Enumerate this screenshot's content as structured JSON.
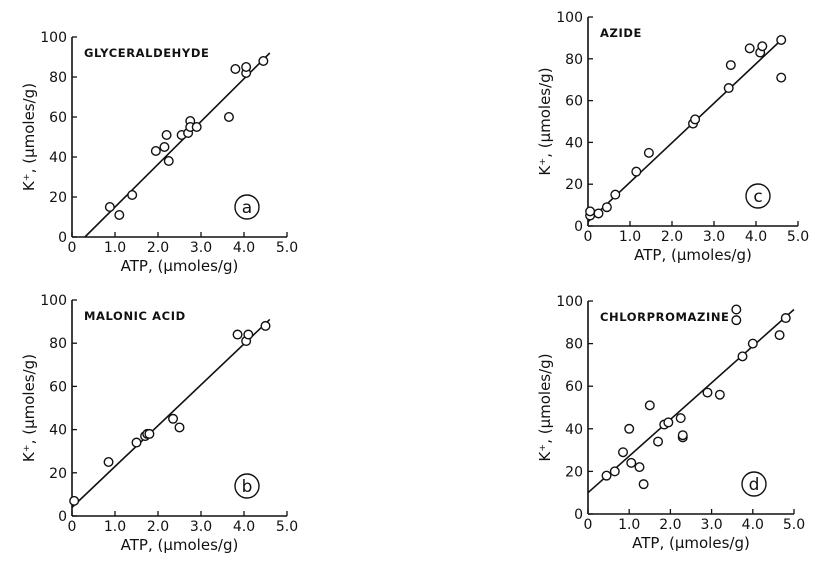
{
  "chart_data": [
    {
      "type": "scatter",
      "title": "GLYCERALDEHYDE",
      "panel": "a",
      "xlabel": "ATP, (µmoles/g)",
      "ylabel": "K⁺, (µmoles/g)",
      "xlim": [
        0,
        5.0
      ],
      "ylim": [
        0,
        100
      ],
      "xticks": [
        "0",
        "1.0",
        "2.0",
        "3.0",
        "4.0",
        "5.0"
      ],
      "yticks": [
        "0",
        "20",
        "40",
        "60",
        "80",
        "100"
      ],
      "points": [
        [
          0.88,
          15
        ],
        [
          1.1,
          11
        ],
        [
          1.4,
          21
        ],
        [
          1.95,
          43
        ],
        [
          2.15,
          45
        ],
        [
          2.2,
          51
        ],
        [
          2.25,
          38
        ],
        [
          2.55,
          51
        ],
        [
          2.7,
          52
        ],
        [
          2.75,
          58
        ],
        [
          2.75,
          55
        ],
        [
          2.9,
          55
        ],
        [
          3.65,
          60
        ],
        [
          3.8,
          84
        ],
        [
          4.05,
          82
        ],
        [
          4.05,
          85
        ],
        [
          4.45,
          88
        ]
      ],
      "fit_line": [
        [
          0.3,
          0
        ],
        [
          4.6,
          92
        ]
      ]
    },
    {
      "type": "scatter",
      "title": "MALONIC ACID",
      "panel": "b",
      "xlabel": "ATP, (µmoles/g)",
      "ylabel": "K⁺, (µmoles/g)",
      "xlim": [
        0,
        5.0
      ],
      "ylim": [
        0,
        100
      ],
      "xticks": [
        "0",
        "1.0",
        "2.0",
        "3.0",
        "4.0",
        "5.0"
      ],
      "yticks": [
        "0",
        "20",
        "40",
        "60",
        "80",
        "100"
      ],
      "points": [
        [
          0.05,
          7
        ],
        [
          0.85,
          25
        ],
        [
          1.5,
          34
        ],
        [
          1.7,
          37
        ],
        [
          1.75,
          38
        ],
        [
          1.8,
          38
        ],
        [
          2.35,
          45
        ],
        [
          2.5,
          41
        ],
        [
          3.85,
          84
        ],
        [
          4.05,
          81
        ],
        [
          4.1,
          84
        ],
        [
          4.5,
          88
        ]
      ],
      "fit_line": [
        [
          0,
          4
        ],
        [
          4.6,
          91
        ]
      ]
    },
    {
      "type": "scatter",
      "title": "AZIDE",
      "panel": "c",
      "xlabel": "ATP, (µmoles/g)",
      "ylabel": "K⁺, (µmoles/g)",
      "xlim": [
        0,
        5.0
      ],
      "ylim": [
        0,
        100
      ],
      "xticks": [
        "0",
        "1.0",
        "2.0",
        "3.0",
        "4.0",
        "5.0"
      ],
      "yticks": [
        "0",
        "20",
        "40",
        "60",
        "80",
        "100"
      ],
      "points": [
        [
          0.05,
          5
        ],
        [
          0.05,
          7
        ],
        [
          0.25,
          6
        ],
        [
          0.45,
          9
        ],
        [
          0.65,
          15
        ],
        [
          1.15,
          26
        ],
        [
          1.45,
          35
        ],
        [
          2.5,
          49
        ],
        [
          2.55,
          51
        ],
        [
          3.35,
          66
        ],
        [
          3.4,
          77
        ],
        [
          3.85,
          85
        ],
        [
          4.1,
          83
        ],
        [
          4.15,
          86
        ],
        [
          4.6,
          89
        ],
        [
          4.6,
          71
        ]
      ],
      "fit_line": [
        [
          0,
          2
        ],
        [
          4.6,
          89
        ]
      ]
    },
    {
      "type": "scatter",
      "title": "CHLORPROMAZINE",
      "panel": "d",
      "xlabel": "ATP, (µmoles/g)",
      "ylabel": "K⁺, (µmoles/g)",
      "xlim": [
        0,
        5.0
      ],
      "ylim": [
        0,
        100
      ],
      "xticks": [
        "0",
        "1.0",
        "2.0",
        "3.0",
        "4.0",
        "5.0"
      ],
      "yticks": [
        "0",
        "20",
        "40",
        "60",
        "80",
        "100"
      ],
      "points": [
        [
          0.45,
          18
        ],
        [
          0.65,
          20
        ],
        [
          0.85,
          29
        ],
        [
          1.0,
          40
        ],
        [
          1.05,
          24
        ],
        [
          1.25,
          22
        ],
        [
          1.35,
          14
        ],
        [
          1.5,
          51
        ],
        [
          1.7,
          34
        ],
        [
          1.85,
          42
        ],
        [
          1.95,
          43
        ],
        [
          2.25,
          45
        ],
        [
          2.3,
          36
        ],
        [
          2.3,
          37
        ],
        [
          2.9,
          57
        ],
        [
          3.2,
          56
        ],
        [
          3.6,
          91
        ],
        [
          3.6,
          96
        ],
        [
          3.75,
          74
        ],
        [
          4.0,
          80
        ],
        [
          4.65,
          84
        ],
        [
          4.8,
          92
        ]
      ],
      "fit_line": [
        [
          0,
          10
        ],
        [
          5.0,
          96
        ]
      ]
    }
  ]
}
